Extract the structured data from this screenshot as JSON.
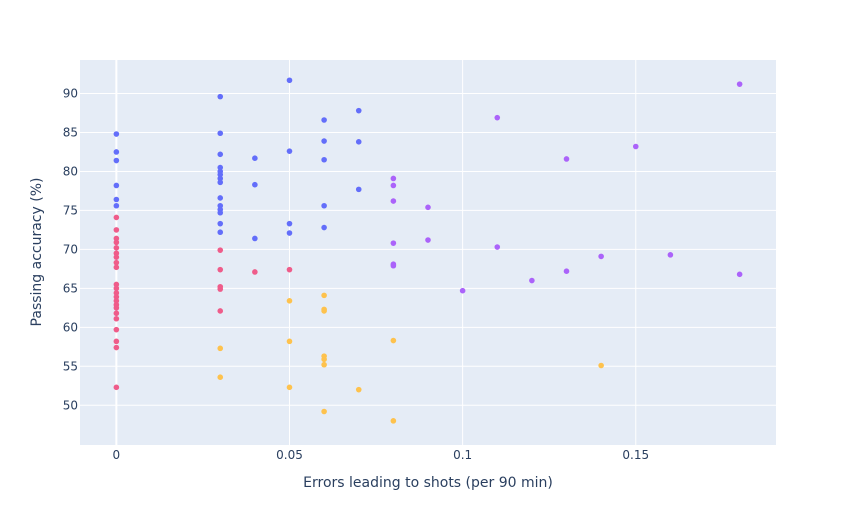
{
  "chart_data": {
    "type": "scatter",
    "title": "",
    "xlabel": "Errors leading to shots (per 90 min)",
    "ylabel": "Passing accuracy (%)",
    "xlim": [
      -0.0105,
      0.1905
    ],
    "ylim": [
      44.9,
      94.3
    ],
    "xticks": [
      0,
      0.05,
      0.1,
      0.15
    ],
    "xtick_labels": [
      "0",
      "0.05",
      "0.1",
      "0.15"
    ],
    "yticks": [
      50,
      55,
      60,
      65,
      70,
      75,
      80,
      85,
      90
    ],
    "ytick_labels": [
      "50",
      "55",
      "60",
      "65",
      "70",
      "75",
      "80",
      "85",
      "90"
    ],
    "grid": true,
    "legend": "none",
    "plot_bgcolor": "#e5ecf6",
    "series": [
      {
        "color": "#636efa",
        "points": [
          [
            0,
            84.8
          ],
          [
            0,
            82.5
          ],
          [
            0,
            81.4
          ],
          [
            0,
            78.2
          ],
          [
            0,
            76.4
          ],
          [
            0,
            75.6
          ],
          [
            0.03,
            89.6
          ],
          [
            0.03,
            84.9
          ],
          [
            0.03,
            82.2
          ],
          [
            0.03,
            80.5
          ],
          [
            0.03,
            80.0
          ],
          [
            0.03,
            79.6
          ],
          [
            0.03,
            79.1
          ],
          [
            0.03,
            78.6
          ],
          [
            0.03,
            76.6
          ],
          [
            0.03,
            75.6
          ],
          [
            0.03,
            75.1
          ],
          [
            0.03,
            74.7
          ],
          [
            0.03,
            73.3
          ],
          [
            0.03,
            72.2
          ],
          [
            0.04,
            81.7
          ],
          [
            0.04,
            78.3
          ],
          [
            0.04,
            71.4
          ],
          [
            0.05,
            91.7
          ],
          [
            0.05,
            82.6
          ],
          [
            0.05,
            73.3
          ],
          [
            0.05,
            72.1
          ],
          [
            0.06,
            86.6
          ],
          [
            0.06,
            83.9
          ],
          [
            0.06,
            81.5
          ],
          [
            0.06,
            75.6
          ],
          [
            0.06,
            72.8
          ],
          [
            0.07,
            87.8
          ],
          [
            0.07,
            83.8
          ],
          [
            0.07,
            77.7
          ]
        ]
      },
      {
        "color": "#ef5c8a",
        "points": [
          [
            0,
            74.1
          ],
          [
            0,
            72.5
          ],
          [
            0,
            71.4
          ],
          [
            0,
            70.9
          ],
          [
            0,
            70.2
          ],
          [
            0,
            69.5
          ],
          [
            0,
            69.0
          ],
          [
            0,
            68.3
          ],
          [
            0,
            67.7
          ],
          [
            0,
            65.5
          ],
          [
            0,
            65.0
          ],
          [
            0,
            64.4
          ],
          [
            0,
            63.9
          ],
          [
            0,
            63.4
          ],
          [
            0,
            62.9
          ],
          [
            0,
            62.5
          ],
          [
            0,
            61.8
          ],
          [
            0,
            61.1
          ],
          [
            0,
            59.7
          ],
          [
            0,
            58.2
          ],
          [
            0,
            57.4
          ],
          [
            0,
            52.3
          ],
          [
            0.03,
            69.9
          ],
          [
            0.03,
            67.4
          ],
          [
            0.03,
            65.2
          ],
          [
            0.03,
            64.9
          ],
          [
            0.03,
            62.1
          ],
          [
            0.04,
            67.1
          ],
          [
            0.05,
            67.4
          ]
        ]
      },
      {
        "color": "#fec24d",
        "points": [
          [
            0.03,
            57.3
          ],
          [
            0.03,
            53.6
          ],
          [
            0.05,
            63.4
          ],
          [
            0.05,
            58.2
          ],
          [
            0.05,
            52.3
          ],
          [
            0.06,
            64.1
          ],
          [
            0.06,
            62.3
          ],
          [
            0.06,
            62.1
          ],
          [
            0.06,
            56.3
          ],
          [
            0.06,
            55.9
          ],
          [
            0.06,
            55.2
          ],
          [
            0.06,
            49.2
          ],
          [
            0.07,
            52.0
          ],
          [
            0.08,
            58.3
          ],
          [
            0.08,
            48.0
          ],
          [
            0.14,
            55.1
          ]
        ]
      },
      {
        "color": "#ab63fa",
        "points": [
          [
            0.08,
            79.1
          ],
          [
            0.08,
            78.2
          ],
          [
            0.08,
            76.2
          ],
          [
            0.08,
            70.8
          ],
          [
            0.08,
            68.1
          ],
          [
            0.08,
            67.9
          ],
          [
            0.09,
            75.4
          ],
          [
            0.09,
            71.2
          ],
          [
            0.1,
            64.7
          ],
          [
            0.11,
            86.9
          ],
          [
            0.11,
            70.3
          ],
          [
            0.12,
            66.0
          ],
          [
            0.13,
            81.6
          ],
          [
            0.13,
            67.2
          ],
          [
            0.14,
            69.1
          ],
          [
            0.15,
            83.2
          ],
          [
            0.16,
            69.3
          ],
          [
            0.18,
            91.2
          ],
          [
            0.18,
            66.8
          ]
        ]
      }
    ]
  }
}
